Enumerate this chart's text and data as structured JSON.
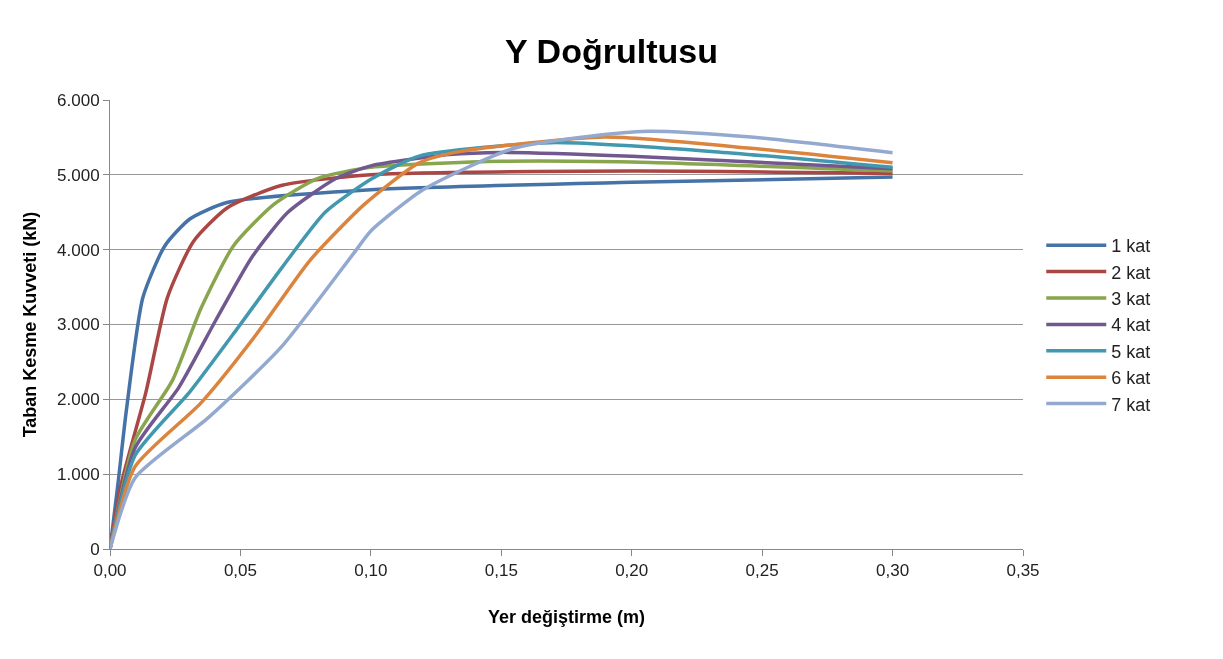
{
  "chart_data": {
    "type": "line",
    "title": "Y Doğrultusu",
    "xlabel": "Yer değiştirme (m)",
    "ylabel": "Taban Kesme Kuvveti (kN)",
    "xlim": [
      0,
      0.35
    ],
    "ylim": [
      0,
      6000
    ],
    "xticks": [
      {
        "value": 0,
        "label": "0,00"
      },
      {
        "value": 0.05,
        "label": "0,05"
      },
      {
        "value": 0.1,
        "label": "0,10"
      },
      {
        "value": 0.15,
        "label": "0,15"
      },
      {
        "value": 0.2,
        "label": "0,20"
      },
      {
        "value": 0.25,
        "label": "0,25"
      },
      {
        "value": 0.3,
        "label": "0,30"
      },
      {
        "value": 0.35,
        "label": "0,35"
      }
    ],
    "yticks": [
      0,
      {
        "value": 1000,
        "label": "1.000"
      },
      {
        "value": 2000,
        "label": "2.000"
      },
      {
        "value": 3000,
        "label": "3.000"
      },
      {
        "value": 4000,
        "label": "4.000"
      },
      {
        "value": 5000,
        "label": "5.000"
      },
      {
        "value": 6000,
        "label": "6.000"
      }
    ],
    "grid": "y",
    "legend": "right",
    "marker": "none",
    "line_style": "solid",
    "series": [
      {
        "name": "1 kat",
        "color": "#4572a7",
        "x": [
          0,
          0.003,
          0.0063,
          0.0126,
          0.021,
          0.0306,
          0.0448,
          0.1,
          0.2,
          0.3
        ],
        "values": [
          0,
          855,
          1860,
          3360,
          4050,
          4410,
          4630,
          4800,
          4900,
          4970
        ]
      },
      {
        "name": "2 kat",
        "color": "#aa4643",
        "x": [
          0,
          0.0042,
          0.0138,
          0.022,
          0.032,
          0.045,
          0.066,
          0.1,
          0.2,
          0.3
        ],
        "values": [
          0,
          855,
          2100,
          3360,
          4110,
          4560,
          4860,
          5000,
          5050,
          5020
        ]
      },
      {
        "name": "3 kat",
        "color": "#89a54e",
        "x": [
          0,
          0.0096,
          0.0239,
          0.0348,
          0.0473,
          0.0628,
          0.0795,
          0.1,
          0.15,
          0.2,
          0.3
        ],
        "values": [
          0,
          1455,
          2250,
          3210,
          4050,
          4605,
          4950,
          5100,
          5180,
          5170,
          5050
        ]
      },
      {
        "name": "4 kat",
        "color": "#71588f",
        "x": [
          0,
          0.0096,
          0.0264,
          0.0406,
          0.0544,
          0.0682,
          0.0866,
          0.1,
          0.13,
          0.15,
          0.2,
          0.3
        ],
        "values": [
          0,
          1350,
          2160,
          3060,
          3900,
          4500,
          4950,
          5120,
          5270,
          5300,
          5250,
          5080
        ]
      },
      {
        "name": "5 kat",
        "color": "#4198af",
        "x": [
          0,
          0.0096,
          0.0306,
          0.049,
          0.0657,
          0.0825,
          0.1005,
          0.1185,
          0.169,
          0.2316,
          0.3
        ],
        "values": [
          0,
          1250,
          2100,
          2955,
          3750,
          4500,
          4950,
          5250,
          5430,
          5310,
          5100
        ]
      },
      {
        "name": "6 kat",
        "color": "#db843d",
        "x": [
          0,
          0.0096,
          0.0348,
          0.0557,
          0.0766,
          0.0975,
          0.1185,
          0.134,
          0.1897,
          0.2457,
          0.3
        ],
        "values": [
          0,
          1100,
          1950,
          2850,
          3855,
          4605,
          5160,
          5310,
          5505,
          5355,
          5160
        ]
      },
      {
        "name": "7 kat",
        "color": "#93a9cf",
        "x": [
          0,
          0.0096,
          0.0377,
          0.0657,
          0.0934,
          0.1,
          0.12,
          0.155,
          0.2039,
          0.2457,
          0.3
        ],
        "values": [
          0,
          950,
          1755,
          2700,
          3950,
          4250,
          4800,
          5355,
          5580,
          5505,
          5295
        ]
      }
    ]
  }
}
